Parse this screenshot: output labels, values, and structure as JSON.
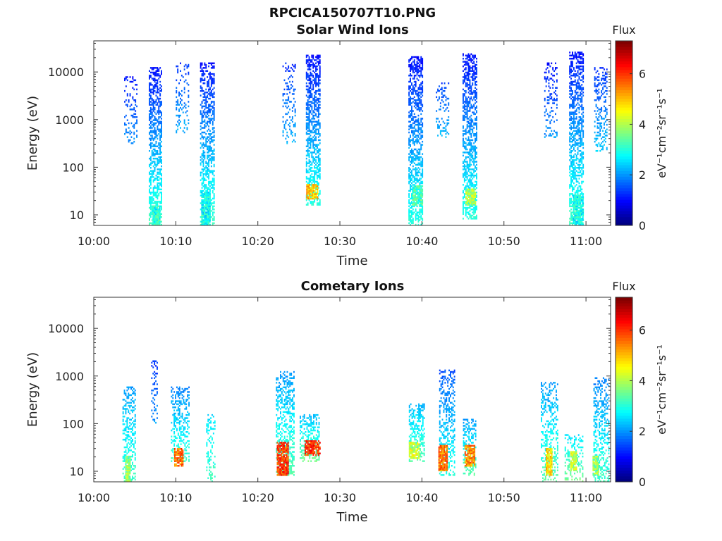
{
  "figure_title": "RPCICA150707T10.PNG",
  "colorbar": {
    "label": "Flux",
    "units": "eV⁻¹cm⁻²sr⁻¹s⁻¹",
    "ticks": [
      "0",
      "2",
      "4",
      "6"
    ],
    "range": [
      0,
      7.3
    ],
    "colormap": "jet"
  },
  "chart_data": [
    {
      "type": "heatmap",
      "title": "Solar Wind Ions",
      "xlabel": "Time",
      "ylabel": "Energy (eV)",
      "x_ticks": [
        "10:00",
        "10:10",
        "10:20",
        "10:30",
        "10:40",
        "10:50",
        "11:00"
      ],
      "x_range_minutes": [
        0,
        63
      ],
      "y_ticks": [
        "10",
        "100",
        "1000",
        "10000"
      ],
      "y_scale": "log",
      "y_range": [
        6,
        45000
      ],
      "grid": false,
      "bursts": [
        {
          "t": 4.5,
          "width": 1.6,
          "emin": 300,
          "emax": 8000,
          "fmin": 1.0,
          "fmax": 2.0,
          "density": 0.25
        },
        {
          "t": 7.5,
          "width": 1.6,
          "emin": 6,
          "emax": 12000,
          "fmin": 1.0,
          "fmax": 3.2,
          "density": 0.55
        },
        {
          "t": 10.8,
          "width": 1.6,
          "emin": 500,
          "emax": 15000,
          "fmin": 1.2,
          "fmax": 2.2,
          "density": 0.22
        },
        {
          "t": 13.8,
          "width": 1.7,
          "emin": 6,
          "emax": 15000,
          "fmin": 1.0,
          "fmax": 3.2,
          "density": 0.5
        },
        {
          "t": 23.8,
          "width": 1.6,
          "emin": 300,
          "emax": 15000,
          "fmin": 1.2,
          "fmax": 2.2,
          "density": 0.22
        },
        {
          "t": 26.7,
          "width": 1.7,
          "emin": 15,
          "emax": 22000,
          "fmin": 1.0,
          "fmax": 3.0,
          "density": 0.55
        },
        {
          "t": 39.2,
          "width": 1.7,
          "emin": 6,
          "emax": 20000,
          "fmin": 1.0,
          "fmax": 3.0,
          "density": 0.55
        },
        {
          "t": 42.5,
          "width": 1.6,
          "emin": 400,
          "emax": 6000,
          "fmin": 1.3,
          "fmax": 2.3,
          "density": 0.22
        },
        {
          "t": 45.8,
          "width": 1.7,
          "emin": 8,
          "emax": 24000,
          "fmin": 1.0,
          "fmax": 3.0,
          "density": 0.55
        },
        {
          "t": 55.7,
          "width": 1.6,
          "emin": 400,
          "emax": 15000,
          "fmin": 1.0,
          "fmax": 2.0,
          "density": 0.22
        },
        {
          "t": 58.8,
          "width": 1.7,
          "emin": 6,
          "emax": 26000,
          "fmin": 1.0,
          "fmax": 3.2,
          "density": 0.55
        },
        {
          "t": 61.8,
          "width": 1.6,
          "emin": 200,
          "emax": 12000,
          "fmin": 1.2,
          "fmax": 2.4,
          "density": 0.3
        }
      ],
      "hotspots": [
        {
          "t": 7.6,
          "width": 0.9,
          "emin": 6,
          "emax": 15,
          "flux": 3.6
        },
        {
          "t": 13.6,
          "width": 1.0,
          "emin": 6,
          "emax": 30,
          "flux": 3.4
        },
        {
          "t": 26.6,
          "width": 1.4,
          "emin": 20,
          "emax": 42,
          "flux": 5.6
        },
        {
          "t": 39.4,
          "width": 1.2,
          "emin": 15,
          "emax": 40,
          "flux": 3.8
        },
        {
          "t": 45.9,
          "width": 1.2,
          "emin": 15,
          "emax": 35,
          "flux": 4.6
        },
        {
          "t": 59.0,
          "width": 1.2,
          "emin": 6,
          "emax": 25,
          "flux": 3.4
        }
      ]
    },
    {
      "type": "heatmap",
      "title": "Cometary Ions",
      "xlabel": "Time",
      "ylabel": "Energy (eV)",
      "x_ticks": [
        "10:00",
        "10:10",
        "10:20",
        "10:30",
        "10:40",
        "10:50",
        "11:00"
      ],
      "x_range_minutes": [
        0,
        63
      ],
      "y_ticks": [
        "10",
        "100",
        "1000",
        "10000"
      ],
      "y_scale": "log",
      "y_range": [
        6,
        45000
      ],
      "grid": false,
      "bursts": [
        {
          "t": 4.3,
          "width": 1.6,
          "emin": 6,
          "emax": 600,
          "fmin": 2.0,
          "fmax": 3.2,
          "density": 0.35
        },
        {
          "t": 7.4,
          "width": 0.8,
          "emin": 100,
          "emax": 2000,
          "fmin": 1.2,
          "fmax": 2.0,
          "density": 0.2
        },
        {
          "t": 10.5,
          "width": 2.2,
          "emin": 15,
          "emax": 600,
          "fmin": 1.8,
          "fmax": 3.2,
          "density": 0.35
        },
        {
          "t": 14.2,
          "width": 1.0,
          "emin": 6,
          "emax": 150,
          "fmin": 2.5,
          "fmax": 3.2,
          "density": 0.3
        },
        {
          "t": 23.3,
          "width": 2.2,
          "emin": 8,
          "emax": 1200,
          "fmin": 2.0,
          "fmax": 3.4,
          "density": 0.45
        },
        {
          "t": 26.3,
          "width": 2.4,
          "emin": 15,
          "emax": 150,
          "fmin": 2.2,
          "fmax": 3.6,
          "density": 0.45
        },
        {
          "t": 39.3,
          "width": 1.8,
          "emin": 15,
          "emax": 250,
          "fmin": 2.2,
          "fmax": 3.4,
          "density": 0.4
        },
        {
          "t": 43.0,
          "width": 1.8,
          "emin": 8,
          "emax": 1300,
          "fmin": 1.5,
          "fmax": 3.0,
          "density": 0.35
        },
        {
          "t": 45.8,
          "width": 1.6,
          "emin": 8,
          "emax": 120,
          "fmin": 2.0,
          "fmax": 3.4,
          "density": 0.4
        },
        {
          "t": 55.5,
          "width": 2.0,
          "emin": 6,
          "emax": 700,
          "fmin": 2.0,
          "fmax": 3.4,
          "density": 0.35
        },
        {
          "t": 58.5,
          "width": 2.2,
          "emin": 6,
          "emax": 60,
          "fmin": 2.5,
          "fmax": 3.6,
          "density": 0.3
        },
        {
          "t": 61.8,
          "width": 1.8,
          "emin": 6,
          "emax": 900,
          "fmin": 1.8,
          "fmax": 3.2,
          "density": 0.35
        }
      ],
      "hotspots": [
        {
          "t": 4.1,
          "width": 0.5,
          "emin": 6,
          "emax": 20,
          "flux": 4.4
        },
        {
          "t": 10.3,
          "width": 1.0,
          "emin": 12,
          "emax": 30,
          "flux": 6.2
        },
        {
          "t": 23.0,
          "width": 1.4,
          "emin": 8,
          "emax": 40,
          "flux": 6.6
        },
        {
          "t": 26.6,
          "width": 1.8,
          "emin": 20,
          "emax": 42,
          "flux": 6.6
        },
        {
          "t": 39.0,
          "width": 1.2,
          "emin": 18,
          "emax": 40,
          "flux": 4.8
        },
        {
          "t": 42.5,
          "width": 1.0,
          "emin": 10,
          "emax": 35,
          "flux": 6.2
        },
        {
          "t": 45.8,
          "width": 1.2,
          "emin": 12,
          "emax": 35,
          "flux": 6.0
        },
        {
          "t": 55.5,
          "width": 0.8,
          "emin": 8,
          "emax": 30,
          "flux": 5.4
        },
        {
          "t": 58.5,
          "width": 0.8,
          "emin": 10,
          "emax": 25,
          "flux": 4.8
        },
        {
          "t": 61.2,
          "width": 0.8,
          "emin": 8,
          "emax": 20,
          "flux": 4.4
        }
      ]
    }
  ]
}
